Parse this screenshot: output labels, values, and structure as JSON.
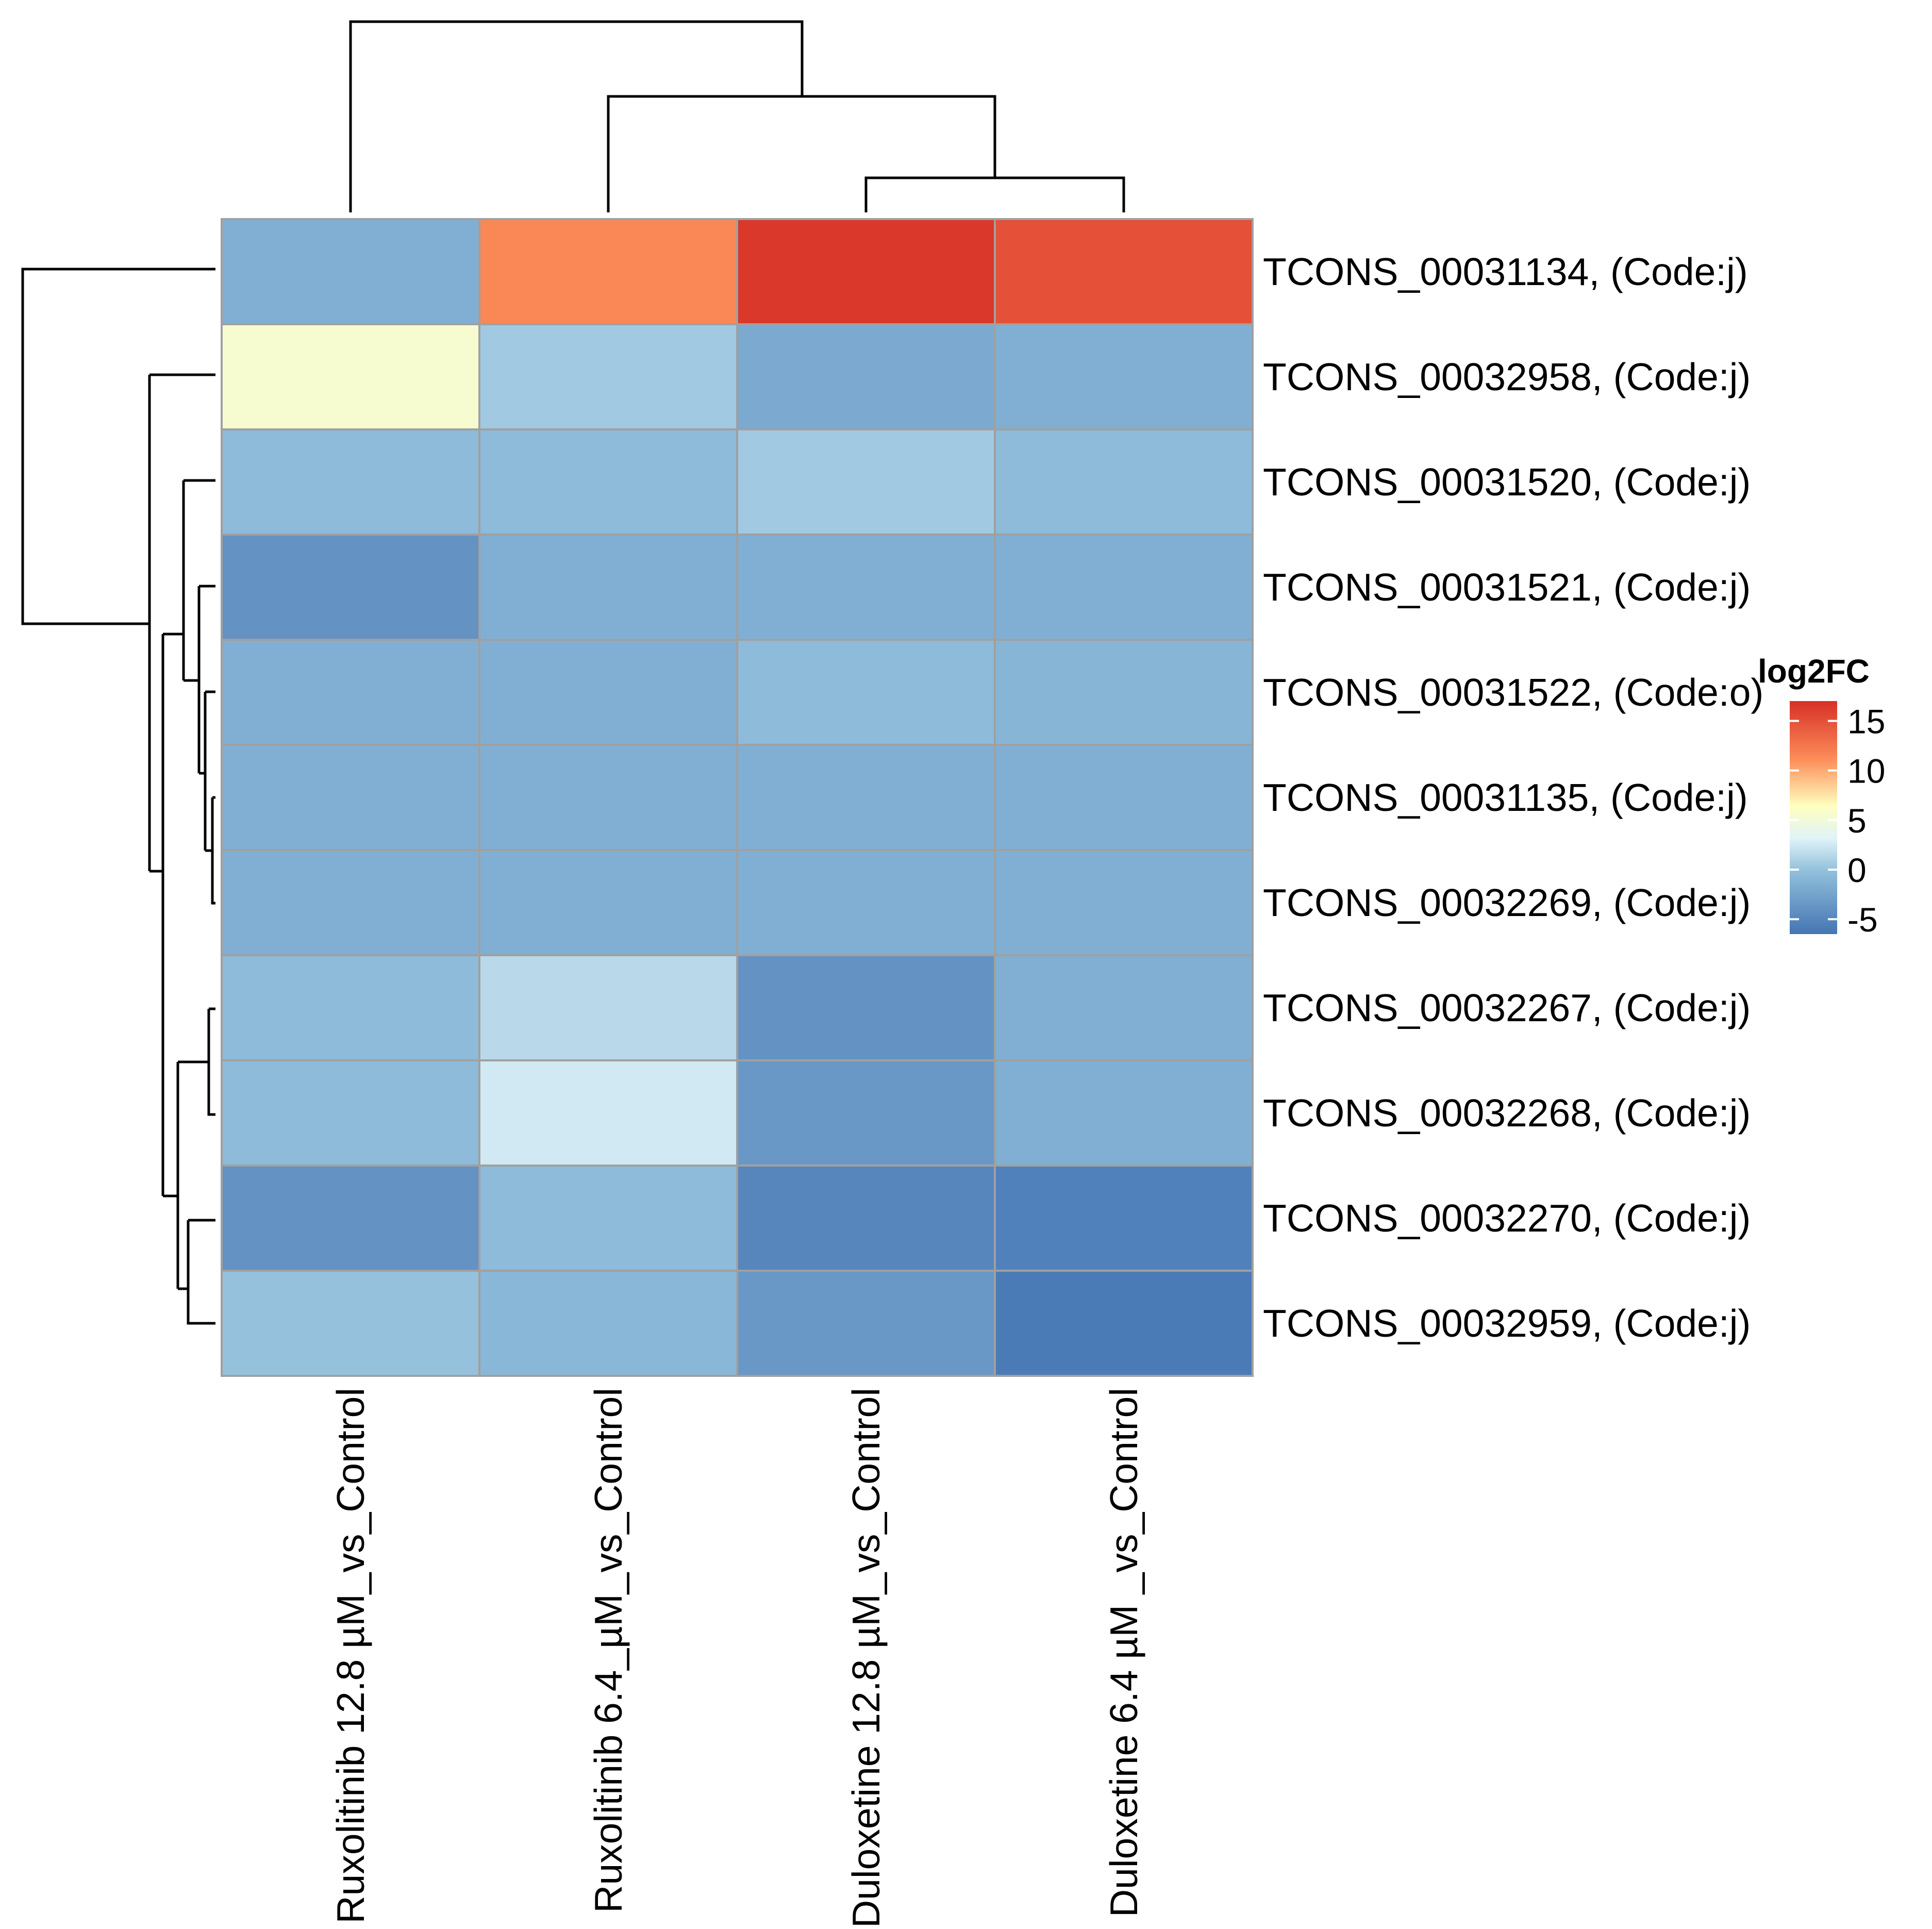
{
  "chart_data": {
    "type": "heatmap",
    "rows": [
      "TCONS_00031134, (Code:j)",
      "TCONS_00032958, (Code:j)",
      "TCONS_00031520, (Code:j)",
      "TCONS_00031521, (Code:j)",
      "TCONS_00031522, (Code:o)",
      "TCONS_00031135, (Code:j)",
      "TCONS_00032269, (Code:j)",
      "TCONS_00032267, (Code:j)",
      "TCONS_00032268, (Code:j)",
      "TCONS_00032270, (Code:j)",
      "TCONS_00032959, (Code:j)"
    ],
    "columns": [
      "Ruxolitinib 12.8 µM_vs_Control",
      "Ruxolitinib 6.4_µM_vs_Control",
      "Duloxetine 12.8 µM_vs_Control",
      "Duloxetine 6.4 µM _vs_Control"
    ],
    "values": [
      [
        -1.5,
        11.5,
        16.5,
        15.0
      ],
      [
        5.5,
        0.5,
        -2.0,
        -1.5
      ],
      [
        -0.5,
        -0.5,
        0.5,
        -0.5
      ],
      [
        -4.0,
        -1.5,
        -1.5,
        -1.5
      ],
      [
        -1.5,
        -1.5,
        -0.5,
        -1.0
      ],
      [
        -1.5,
        -1.5,
        -1.5,
        -1.5
      ],
      [
        -1.5,
        -1.5,
        -1.5,
        -1.5
      ],
      [
        -0.5,
        1.5,
        -4.0,
        -1.5
      ],
      [
        -0.5,
        2.5,
        -3.5,
        -1.5
      ],
      [
        -4.0,
        -0.5,
        -5.0,
        -5.5
      ],
      [
        0.0,
        -0.8,
        -3.5,
        -6.0
      ]
    ],
    "legend": {
      "title": "log2FC",
      "ticks": [
        15,
        10,
        5,
        0,
        -5
      ],
      "range": [
        -6.5,
        17
      ]
    },
    "colors": {
      "low": "#4575b4",
      "mid_low": "#91bfdb",
      "mid": "#ffffbf",
      "mid_high": "#fc8d59",
      "high": "#d73027"
    }
  }
}
